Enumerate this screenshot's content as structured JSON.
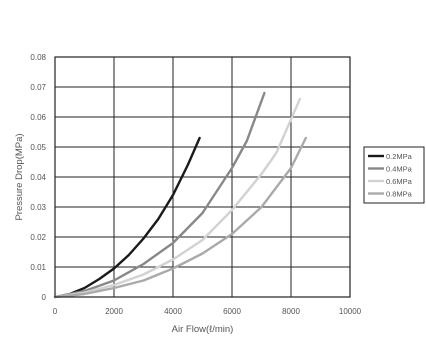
{
  "chart_data": {
    "type": "line",
    "title": "",
    "xlabel": "Air Flow(ℓ/min)",
    "ylabel": "Pressure Drop(MPa)",
    "xlim": [
      0,
      10000
    ],
    "ylim": [
      0,
      0.08
    ],
    "x_ticks": [
      "0",
      "2000",
      "4000",
      "6000",
      "8000",
      "10000"
    ],
    "y_ticks": [
      "0",
      "0.01",
      "0.02",
      "0.03",
      "0.04",
      "0.05",
      "0.06",
      "0.07",
      "0.08"
    ],
    "x_tick_values": [
      0,
      2000,
      4000,
      6000,
      8000,
      10000
    ],
    "y_tick_values": [
      0,
      0.01,
      0.02,
      0.03,
      0.04,
      0.05,
      0.06,
      0.07,
      0.08
    ],
    "grid": true,
    "legend_position": "right",
    "series": [
      {
        "name": "0.2MPa",
        "color": "#1a1a1a",
        "points": [
          [
            0,
            0
          ],
          [
            500,
            0.001
          ],
          [
            1000,
            0.003
          ],
          [
            1500,
            0.006
          ],
          [
            2000,
            0.0095
          ],
          [
            2500,
            0.014
          ],
          [
            3000,
            0.0195
          ],
          [
            3500,
            0.026
          ],
          [
            4000,
            0.034
          ],
          [
            4500,
            0.044
          ],
          [
            4900,
            0.053
          ]
        ]
      },
      {
        "name": "0.4MPa",
        "color": "#888888",
        "points": [
          [
            0,
            0
          ],
          [
            1000,
            0.002
          ],
          [
            2000,
            0.0055
          ],
          [
            3000,
            0.011
          ],
          [
            4000,
            0.018
          ],
          [
            5000,
            0.028
          ],
          [
            6000,
            0.043
          ],
          [
            6500,
            0.052
          ],
          [
            7100,
            0.068
          ]
        ]
      },
      {
        "name": "0.6MPa",
        "color": "#d2d2d2",
        "points": [
          [
            0,
            0
          ],
          [
            1000,
            0.0015
          ],
          [
            2000,
            0.004
          ],
          [
            3000,
            0.0075
          ],
          [
            4000,
            0.0125
          ],
          [
            5000,
            0.019
          ],
          [
            6000,
            0.029
          ],
          [
            7000,
            0.041
          ],
          [
            7500,
            0.048
          ],
          [
            8300,
            0.066
          ]
        ]
      },
      {
        "name": "0.8MPa",
        "color": "#aaaaaa",
        "points": [
          [
            0,
            0
          ],
          [
            1000,
            0.001
          ],
          [
            2000,
            0.003
          ],
          [
            3000,
            0.0055
          ],
          [
            4000,
            0.0095
          ],
          [
            5000,
            0.0145
          ],
          [
            6000,
            0.021
          ],
          [
            7000,
            0.03
          ],
          [
            8000,
            0.043
          ],
          [
            8500,
            0.053
          ]
        ]
      }
    ]
  }
}
